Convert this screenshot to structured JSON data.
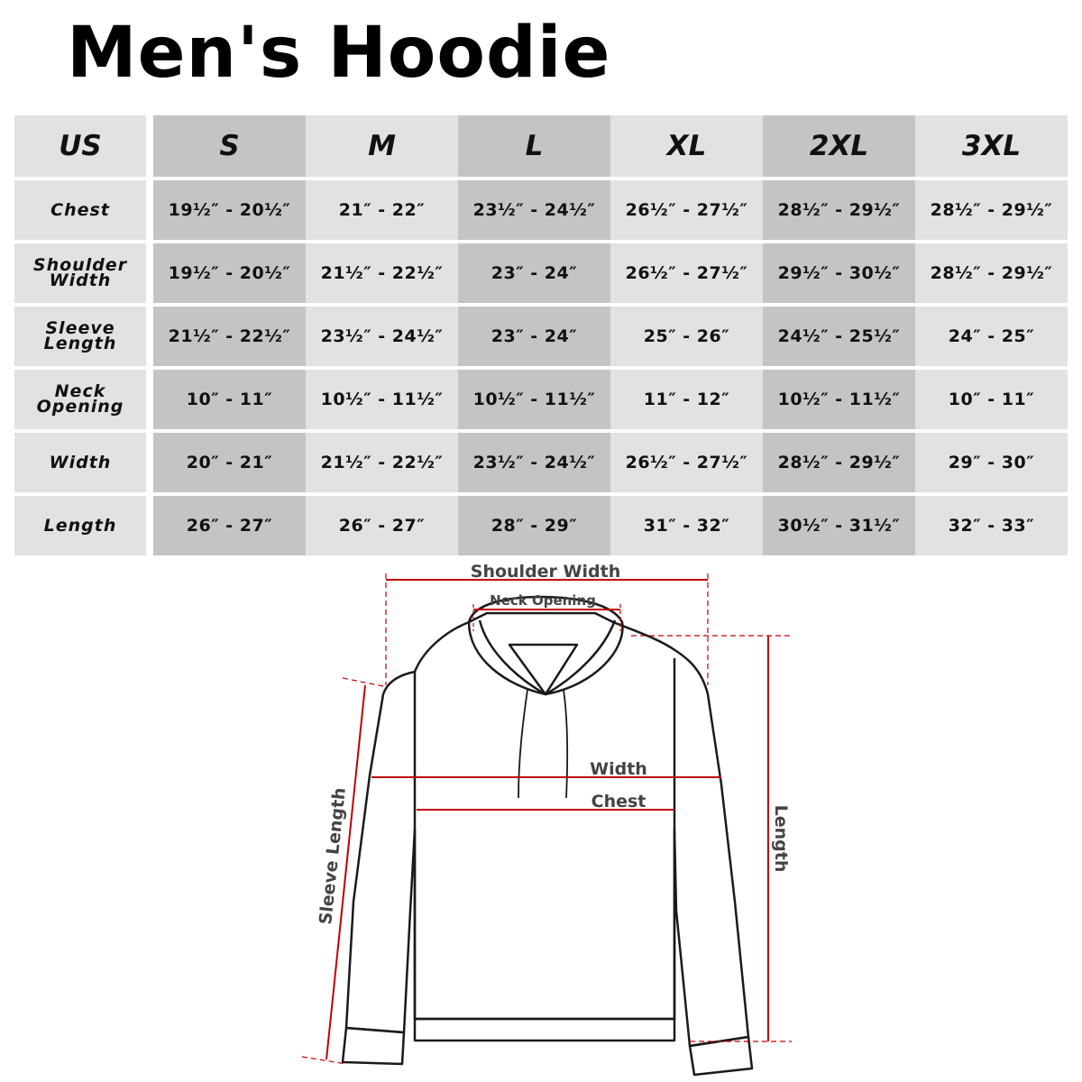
{
  "title": "Men's Hoodie",
  "table": {
    "header": [
      "US",
      "S",
      "M",
      "L",
      "XL",
      "2XL",
      "3XL"
    ],
    "rows": [
      {
        "label": [
          "Chest"
        ],
        "values": [
          "19½″ - 20½″",
          "21″ - 22″",
          "23½″ - 24½″",
          "26½″ - 27½″",
          "28½″ - 29½″",
          "28½″ - 29½″"
        ]
      },
      {
        "label": [
          "Shoulder",
          "Width"
        ],
        "values": [
          "19½″ - 20½″",
          "21½″ - 22½″",
          "23″ - 24″",
          "26½″ - 27½″",
          "29½″ - 30½″",
          "28½″ - 29½″"
        ]
      },
      {
        "label": [
          "Sleeve",
          "Length"
        ],
        "values": [
          "21½″ - 22½″",
          "23½″ - 24½″",
          "23″ - 24″",
          "25″ - 26″",
          "24½″ - 25½″",
          "24″ - 25″"
        ]
      },
      {
        "label": [
          "Neck",
          "Opening"
        ],
        "values": [
          "10″ - 11″",
          "10½″ - 11½″",
          "10½″ - 11½″",
          "11″ - 12″",
          "10½″ - 11½″",
          "10″ - 11″"
        ]
      },
      {
        "label": [
          "Width"
        ],
        "values": [
          "20″ - 21″",
          "21½″ - 22½″",
          "23½″ - 24½″",
          "26½″ - 27½″",
          "28½″ - 29½″",
          "29″ - 30″"
        ]
      },
      {
        "label": [
          "Length"
        ],
        "values": [
          "26″ - 27″",
          "26″ - 27″",
          "28″ - 29″",
          "31″ - 32″",
          "30½″ - 31½″",
          "32″ - 33″"
        ]
      }
    ]
  },
  "diagram": {
    "labels": {
      "shoulder_width": "Shoulder Width",
      "neck_opening": "Neck Opening",
      "width": "Width",
      "chest": "Chest",
      "length": "Length",
      "sleeve_length": "Sleeve Length"
    },
    "colors": {
      "measure_line": "#c00000",
      "outline": "#1a1a1a",
      "label": "#444444",
      "dark_column": "#c4c4c4",
      "light_column": "#e2e2e2"
    }
  }
}
